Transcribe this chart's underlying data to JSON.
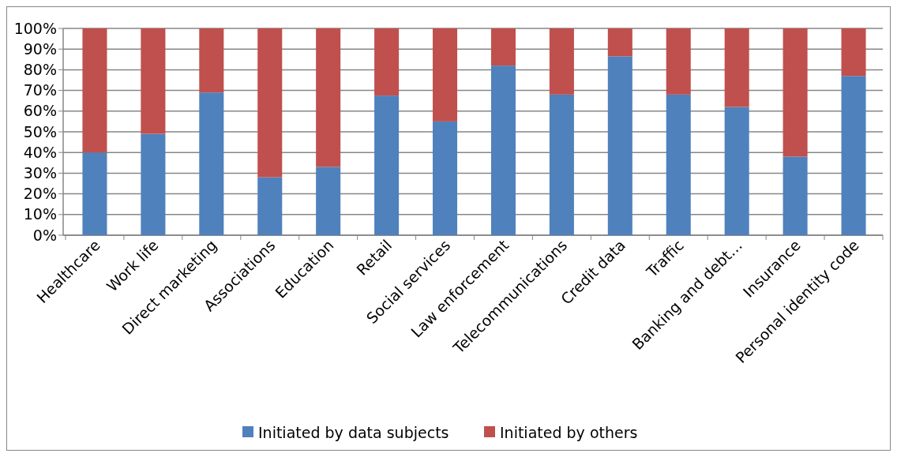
{
  "chart_data": {
    "type": "bar",
    "stacked": true,
    "categories": [
      "Healthcare",
      "Work life",
      "Direct marketing",
      "Associations",
      "Education",
      "Retail",
      "Social services",
      "Law enforcement",
      "Telecommunications",
      "Credit data",
      "Traffic",
      "Banking and debt…",
      "Insurance",
      "Personal identity code"
    ],
    "series": [
      {
        "name": "Initiated by data subjects",
        "color": "#4f81bd",
        "values": [
          40,
          49,
          69,
          28,
          33,
          67.5,
          55,
          82,
          68,
          86.5,
          68,
          62,
          38,
          77
        ]
      },
      {
        "name": "Initiated by others",
        "color": "#c0504d",
        "values": [
          60,
          51,
          31,
          72,
          67,
          32.5,
          45,
          18,
          32,
          13.5,
          32,
          38,
          62,
          23
        ]
      }
    ],
    "ylim": [
      0,
      100
    ],
    "yticks": [
      {
        "value": 0,
        "label": "0%"
      },
      {
        "value": 10,
        "label": "10%"
      },
      {
        "value": 20,
        "label": "20%"
      },
      {
        "value": 30,
        "label": "30%"
      },
      {
        "value": 40,
        "label": "40%"
      },
      {
        "value": 50,
        "label": "50%"
      },
      {
        "value": 60,
        "label": "60%"
      },
      {
        "value": 70,
        "label": "70%"
      },
      {
        "value": 80,
        "label": "80%"
      },
      {
        "value": 90,
        "label": "90%"
      },
      {
        "value": 100,
        "label": "100%"
      }
    ],
    "grid": "y",
    "legend": "bottom"
  }
}
